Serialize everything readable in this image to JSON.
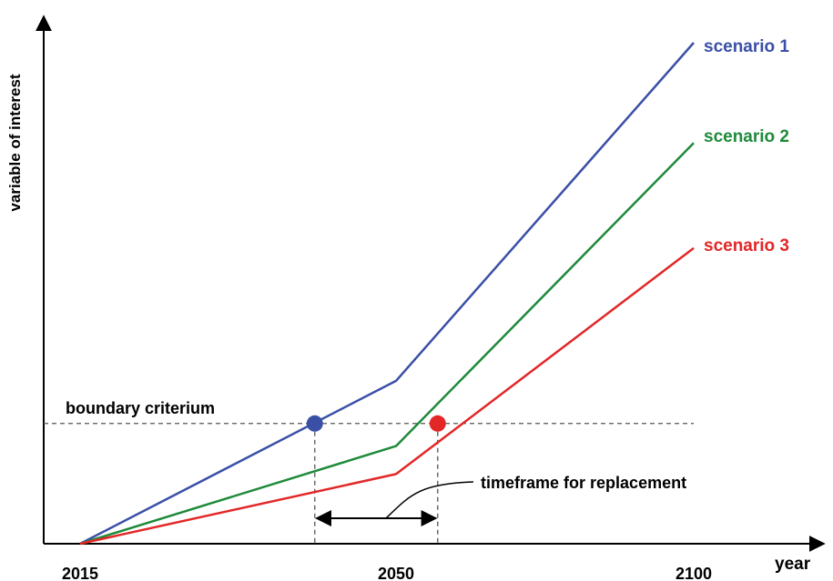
{
  "chart_data": {
    "type": "line",
    "title": "",
    "xlabel": "year",
    "ylabel": "variable of interest",
    "x_ticks": [
      "2015",
      "2050",
      "2100"
    ],
    "xlim": [
      2015,
      2100
    ],
    "ylim": [
      0,
      100
    ],
    "grid": false,
    "legend": "right-end labels",
    "series": [
      {
        "name": "scenario 1",
        "color": "#3a4fa6",
        "x": [
          2015,
          2050,
          2100
        ],
        "y": [
          0,
          32.5,
          100
        ]
      },
      {
        "name": "scenario 2",
        "color": "#1e8a3a",
        "x": [
          2015,
          2050,
          2100
        ],
        "y": [
          0,
          19.5,
          80
        ]
      },
      {
        "name": "scenario 3",
        "color": "#e32626",
        "x": [
          2015,
          2050,
          2100
        ],
        "y": [
          0,
          13.9,
          59
        ]
      }
    ],
    "threshold": {
      "label": "boundary criterium",
      "y": 24
    },
    "crossings": [
      {
        "series": "scenario 1",
        "x": 2041,
        "color": "#3a4fa6"
      },
      {
        "series": "scenario 3",
        "x": 2057,
        "color": "#e32626"
      }
    ],
    "annotation": {
      "label": "timeframe for replacement",
      "from": 2041,
      "to": 2057
    }
  }
}
